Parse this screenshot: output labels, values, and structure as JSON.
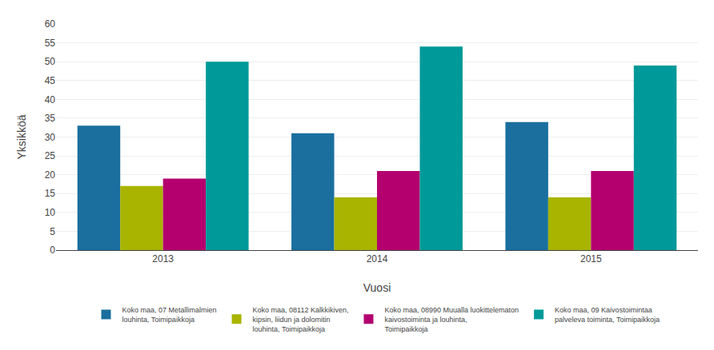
{
  "chart_data": {
    "type": "bar",
    "categories": [
      "2013",
      "2014",
      "2015"
    ],
    "series": [
      {
        "name": "Koko maa, 07 Metallimalmien\nlouhinta, Toimipaikkoja",
        "color": "#1a6f9e",
        "values": [
          33,
          31,
          34
        ]
      },
      {
        "name": "Koko maa, 08112 Kalkkikiven,\nkipsin, liidun ja dolomitin\nlouhinta, Toimipaikkoja",
        "color": "#a8b400",
        "values": [
          17,
          14,
          14
        ]
      },
      {
        "name": "Koko maa, 08990 Muualla luokittelematon\nkaivostoiminta ja louhinta,\nToimipaikkoja",
        "color": "#b3006e",
        "values": [
          19,
          21,
          21
        ]
      },
      {
        "name": "Koko maa, 09 Kaivostoimintaa\npalveleva toiminta, Toimipaikkoja",
        "color": "#009999",
        "values": [
          50,
          54,
          49
        ]
      }
    ],
    "xlabel": "Vuosi",
    "ylabel": "Yksikköä",
    "ylim": [
      0,
      60
    ],
    "yticks": [
      0,
      5,
      10,
      15,
      20,
      25,
      30,
      35,
      40,
      45,
      50,
      55,
      60
    ],
    "grid": true,
    "legend": "bottom"
  }
}
